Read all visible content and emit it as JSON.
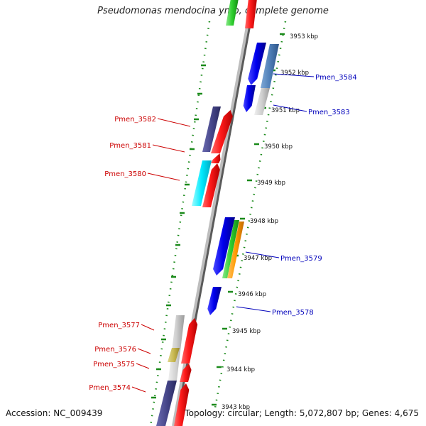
{
  "title": "Pseudomonas mendocina ymp, complete genome",
  "footer": {
    "accession": "Accession: NC_009439",
    "summary": "Topology: circular; Length: 5,072,807 bp; Genes: 4,675"
  },
  "colors": {
    "backbone": "#9a9a9a",
    "tick": "#1a8a1a",
    "label_left": "#cc0000",
    "label_right": "#0000bb"
  },
  "kbp_ticks": [
    "3953 kbp",
    "3952 kbp",
    "3951 kbp",
    "3950 kbp",
    "3949 kbp",
    "3948 kbp",
    "3947 kbp",
    "3946 kbp",
    "3945 kbp",
    "3944 kbp",
    "3943 kbp"
  ],
  "labels_left": [
    "Pmen_3582",
    "Pmen_3581",
    "Pmen_3580",
    "Pmen_3577",
    "Pmen_3576",
    "Pmen_3575",
    "Pmen_3574"
  ],
  "labels_right": [
    "Pmen_3584",
    "Pmen_3583",
    "Pmen_3579",
    "Pmen_3578"
  ]
}
